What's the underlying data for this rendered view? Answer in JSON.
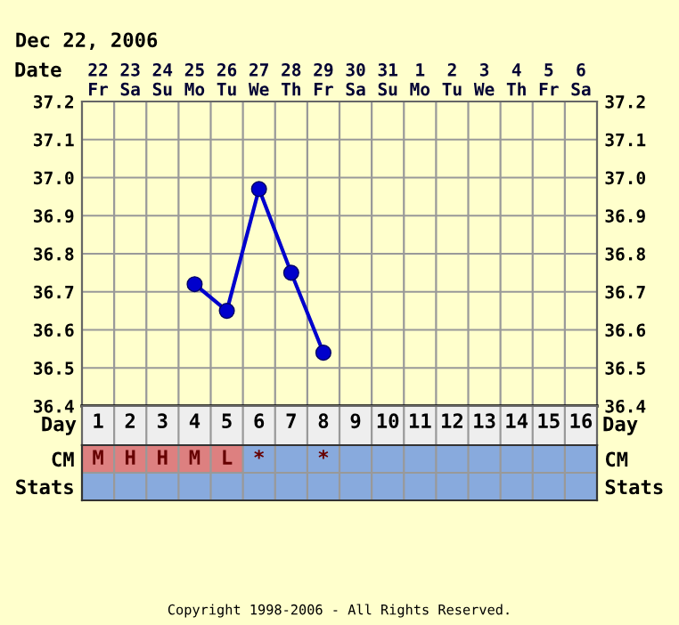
{
  "chart_data": [
    {
      "type": "line",
      "title": "Dec 22, 2006",
      "xlabel": "Date",
      "categories": [
        "22\nFr",
        "23\nSa",
        "24\nSu",
        "25\nMo",
        "26\nTu",
        "27\nWe",
        "28\nTh",
        "29\nFr",
        "30\nSa",
        "31\nSu",
        "1\nMo",
        "2\nTu",
        "3\nWe",
        "4\nTh",
        "5\nFr",
        "6\nSa"
      ],
      "series": [
        {
          "color": "#0000cc",
          "values": [
            null,
            null,
            null,
            36.72,
            36.65,
            36.97,
            36.75,
            36.54,
            null,
            null,
            null,
            null,
            null,
            null,
            null,
            null
          ]
        }
      ],
      "ylim": [
        36.4,
        37.2
      ],
      "yticks": [
        36.4,
        36.5,
        36.6,
        36.7,
        36.8,
        36.9,
        {
          "value": 37.0,
          "label": "37.0"
        },
        37.1,
        37.2
      ],
      "y2lim": [
        36.4,
        37.2
      ],
      "y2ticks": [
        36.4,
        36.5,
        36.6,
        36.7,
        36.8,
        36.9,
        {
          "value": 37.0,
          "label": "37.0"
        },
        37.1,
        37.2
      ],
      "grid": true,
      "marker": "circle",
      "line_style": "solid"
    },
    {
      "type": "heatmap",
      "xlabel": "Day",
      "categories": [
        "1",
        "2",
        "3",
        "4",
        "5",
        "6",
        "7",
        "8",
        "9",
        "10",
        "11",
        "12",
        "13",
        "14",
        "15",
        "16"
      ],
      "y_categories": [
        "CM",
        "Stats"
      ],
      "y2_categories": [
        "CM",
        "Stats"
      ],
      "cells": [
        [
          null,
          null,
          null,
          null,
          null,
          null,
          null,
          null,
          null,
          null,
          null,
          null,
          null,
          null,
          null,
          null
        ],
        [
          null,
          null,
          null,
          null,
          null,
          null,
          null,
          null,
          null,
          null,
          null,
          null,
          null,
          null,
          null,
          null
        ]
      ],
      "cell_labels": [
        [
          "M",
          "H",
          "H",
          "M",
          "L",
          "*",
          null,
          "*",
          null,
          null,
          null,
          null,
          null,
          null,
          null,
          null
        ],
        [
          null,
          null,
          null,
          null,
          null,
          null,
          null,
          null,
          null,
          null,
          null,
          null,
          null,
          null,
          null,
          null
        ]
      ],
      "annotations": [
        "Copyright 1998-2006 - All Rights Reserved."
      ]
    }
  ]
}
